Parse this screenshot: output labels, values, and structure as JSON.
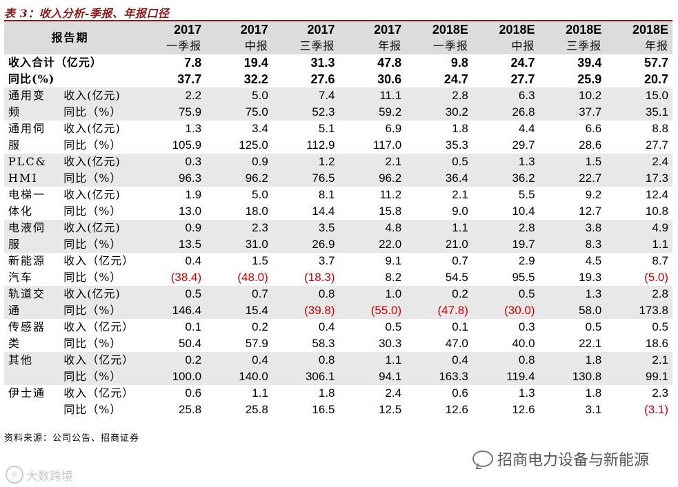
{
  "title": "表 3：收入分析-季报、年报口径",
  "header": {
    "label": "报告期",
    "years": [
      "2017",
      "2017",
      "2017",
      "2017",
      "2018E",
      "2018E",
      "2018E",
      "2018E"
    ],
    "periods": [
      "一季报",
      "中报",
      "三季报",
      "年报",
      "一季报",
      "中报",
      "三季报",
      "年报"
    ]
  },
  "totals": [
    {
      "label": "收入合计（亿元）",
      "values": [
        "7.8",
        "19.4",
        "31.3",
        "47.8",
        "9.8",
        "24.7",
        "39.4",
        "57.7"
      ]
    },
    {
      "label": "同比(%)",
      "values": [
        "37.7",
        "32.2",
        "27.6",
        "30.6",
        "24.7",
        "27.7",
        "25.9",
        "20.7"
      ]
    }
  ],
  "segments": [
    {
      "name1": "通用变",
      "name2": "频",
      "rev_label": "收入(亿元)",
      "yoy_label": "同比（%）",
      "rev": [
        "2.2",
        "5.0",
        "7.4",
        "11.1",
        "2.8",
        "6.3",
        "10.2",
        "15.0"
      ],
      "yoy": [
        "75.9",
        "75.0",
        "52.3",
        "59.2",
        "30.2",
        "26.8",
        "37.7",
        "35.1"
      ]
    },
    {
      "name1": "通用伺",
      "name2": "服",
      "rev_label": "收入(亿元)",
      "yoy_label": "同比（%）",
      "rev": [
        "1.3",
        "3.4",
        "5.1",
        "6.9",
        "1.8",
        "4.4",
        "6.6",
        "8.8"
      ],
      "yoy": [
        "105.9",
        "125.0",
        "112.9",
        "117.0",
        "35.3",
        "29.7",
        "28.6",
        "27.7"
      ]
    },
    {
      "name1": "PLC&",
      "name2": "HMI",
      "rev_label": "收入(亿元)",
      "yoy_label": "同比（%）",
      "rev": [
        "0.3",
        "0.9",
        "1.2",
        "2.1",
        "0.5",
        "1.3",
        "1.5",
        "2.4"
      ],
      "yoy": [
        "96.3",
        "96.2",
        "76.5",
        "96.2",
        "36.4",
        "36.2",
        "22.7",
        "17.3"
      ]
    },
    {
      "name1": "电梯一",
      "name2": "体化",
      "rev_label": "收入(亿元)",
      "yoy_label": "同比（%）",
      "rev": [
        "1.9",
        "5.0",
        "8.1",
        "11.2",
        "2.1",
        "5.5",
        "9.2",
        "12.4"
      ],
      "yoy": [
        "13.0",
        "18.0",
        "14.4",
        "15.8",
        "9.0",
        "10.4",
        "12.7",
        "10.8"
      ]
    },
    {
      "name1": "电液伺",
      "name2": "服",
      "rev_label": "收入(亿元)",
      "yoy_label": "同比（%）",
      "rev": [
        "0.9",
        "2.3",
        "3.5",
        "4.8",
        "1.1",
        "2.8",
        "3.8",
        "4.9"
      ],
      "yoy": [
        "13.5",
        "31.0",
        "26.9",
        "22.0",
        "21.0",
        "19.7",
        "8.3",
        "1.1"
      ]
    },
    {
      "name1": "新能源",
      "name2": "汽车",
      "rev_label": "收入（亿元）",
      "yoy_label": "同比（%）",
      "rev": [
        "0.4",
        "1.5",
        "3.7",
        "9.1",
        "0.7",
        "2.9",
        "4.5",
        "8.7"
      ],
      "yoy": [
        "(38.4)",
        "(48.0)",
        "(18.3)",
        "8.2",
        "54.5",
        "95.5",
        "19.3",
        "(5.0)"
      ]
    },
    {
      "name1": "轨道交",
      "name2": "通",
      "rev_label": "收入(亿元)",
      "yoy_label": "同比（%）",
      "rev": [
        "0.5",
        "0.7",
        "0.8",
        "1.0",
        "0.2",
        "0.5",
        "1.3",
        "2.8"
      ],
      "yoy": [
        "146.4",
        "15.4",
        "(39.8)",
        "(55.0)",
        "(47.8)",
        "(30.0)",
        "58.0",
        "173.8"
      ]
    },
    {
      "name1": "传感器",
      "name2": "类",
      "rev_label": "收入（亿元）",
      "yoy_label": "同比（%）",
      "rev": [
        "0.1",
        "0.2",
        "0.4",
        "0.5",
        "0.1",
        "0.3",
        "0.5",
        "0.5"
      ],
      "yoy": [
        "50.4",
        "57.9",
        "58.3",
        "30.3",
        "47.0",
        "40.0",
        "22.1",
        "18.6"
      ]
    },
    {
      "name1": "其他",
      "name2": "",
      "rev_label": "收入（亿元）",
      "yoy_label": "同比（%）",
      "rev": [
        "0.2",
        "0.4",
        "0.8",
        "1.1",
        "0.4",
        "0.8",
        "1.8",
        "2.1"
      ],
      "yoy": [
        "100.0",
        "140.0",
        "306.1",
        "94.1",
        "163.3",
        "119.4",
        "130.8",
        "99.1"
      ]
    },
    {
      "name1": "伊士通",
      "name2": "",
      "rev_label": "收入（亿元）",
      "yoy_label": "同比（%）",
      "rev": [
        "0.6",
        "1.1",
        "1.8",
        "2.4",
        "0.6",
        "1.3",
        "1.8",
        "2.3"
      ],
      "yoy": [
        "25.8",
        "25.8",
        "16.5",
        "12.5",
        "12.6",
        "12.6",
        "3.1",
        "(3.1)"
      ]
    }
  ],
  "source": "资料来源：公司公告、招商证券",
  "watermark": "招商电力设备与新能源",
  "logo_text": "大数跨境",
  "colors": {
    "title": "#8b1a1a",
    "negative": "#cc0000",
    "shade": "#e8e8e8",
    "header": "#dcdcdc"
  }
}
